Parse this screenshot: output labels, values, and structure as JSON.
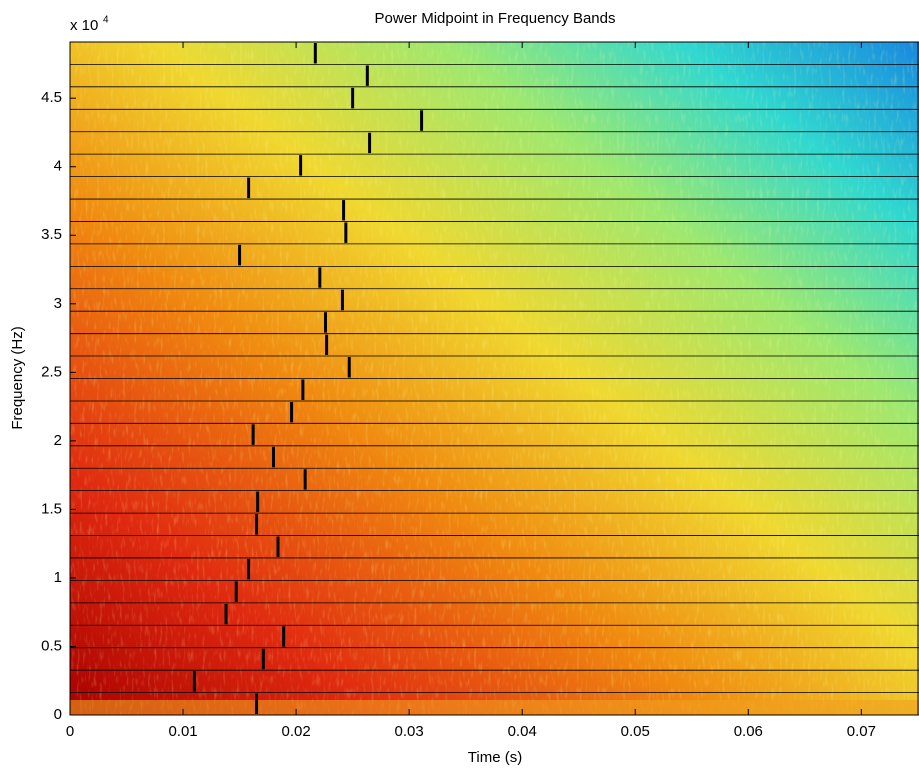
{
  "chart_data": {
    "type": "spectrogram",
    "title": "Power Midpoint in Frequency Bands",
    "xlabel": "Time (s)",
    "ylabel": "Frequency (Hz)",
    "y_multiplier": "x 10",
    "y_multiplier_exp": "4",
    "xlim": [
      0,
      0.0751
    ],
    "ylim": [
      0,
      4.91
    ],
    "xticks": [
      0,
      0.01,
      0.02,
      0.03,
      0.04,
      0.05,
      0.06,
      0.07
    ],
    "yticks": [
      0,
      0.5,
      1,
      1.5,
      2,
      2.5,
      3,
      3.5,
      4,
      4.5
    ],
    "band_edges": [
      0,
      0.164,
      0.327,
      0.491,
      0.655,
      0.818,
      0.982,
      1.146,
      1.309,
      1.473,
      1.637,
      1.8,
      1.964,
      2.128,
      2.291,
      2.455,
      2.619,
      2.782,
      2.946,
      3.11,
      3.273,
      3.437,
      3.601,
      3.764,
      3.928,
      4.092,
      4.255,
      4.419,
      4.583,
      4.746,
      4.91
    ],
    "midpoints": [
      0.0165,
      0.011,
      0.0171,
      0.0189,
      0.0138,
      0.0147,
      0.0158,
      0.0184,
      0.0165,
      0.0166,
      0.0208,
      0.018,
      0.0162,
      0.0196,
      0.0206,
      0.0247,
      0.0227,
      0.0226,
      0.0241,
      0.0221,
      0.015,
      0.0244,
      0.0242,
      0.0158,
      0.0204,
      0.0265,
      0.0311,
      0.025,
      0.0263,
      0.0217
    ],
    "midpoint_color": "#000000",
    "band_line_color": "#000000"
  }
}
